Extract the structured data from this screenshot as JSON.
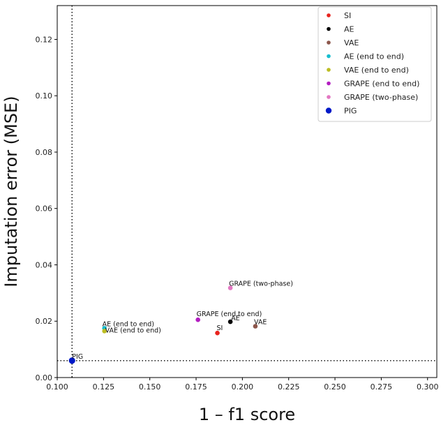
{
  "chart_data": {
    "type": "scatter",
    "xlabel": "1 – f1 score",
    "ylabel": "Imputation error (MSE)",
    "xlim": [
      0.1,
      0.305
    ],
    "ylim": [
      0.0,
      0.132
    ],
    "xticks": [
      "0.100",
      "0.125",
      "0.150",
      "0.175",
      "0.200",
      "0.225",
      "0.250",
      "0.275",
      "0.300"
    ],
    "yticks": [
      "0.00",
      "0.02",
      "0.04",
      "0.06",
      "0.08",
      "0.10",
      "0.12"
    ],
    "grid": false,
    "legend_position": "top-right",
    "reference_lines": {
      "vertical_x": 0.108,
      "horizontal_y": 0.006,
      "style": "dotted"
    },
    "series": [
      {
        "name": "SI",
        "color": "#e8231e",
        "x": 0.1865,
        "y": 0.0158,
        "label": "SI",
        "label_size": "small"
      },
      {
        "name": "AE",
        "color": "#000000",
        "x": 0.1935,
        "y": 0.0198,
        "label": "AE",
        "label_size": "small"
      },
      {
        "name": "VAE",
        "color": "#8c564b",
        "x": 0.207,
        "y": 0.0182,
        "label": "VAE",
        "label_size": "small"
      },
      {
        "name": "AE (end to end)",
        "color": "#17becf",
        "x": 0.1255,
        "y": 0.0175,
        "label": "AE (end to end)",
        "label_size": "small"
      },
      {
        "name": "VAE (end to end)",
        "color": "#bcbd22",
        "x": 0.1255,
        "y": 0.0165,
        "label": "VAE (end to end)",
        "label_size": "small"
      },
      {
        "name": "GRAPE (end to end)",
        "color": "#b31ec1",
        "x": 0.176,
        "y": 0.0205,
        "label": "GRAPE (end to end)",
        "label_size": "small"
      },
      {
        "name": "GRAPE (two-phase)",
        "color": "#e377c2",
        "x": 0.1935,
        "y": 0.0318,
        "label": "GRAPE (two-phase)",
        "label_size": "small"
      },
      {
        "name": "PIG",
        "color": "#0019c8",
        "x": 0.108,
        "y": 0.006,
        "label": "PIG",
        "label_size": "large"
      }
    ]
  }
}
